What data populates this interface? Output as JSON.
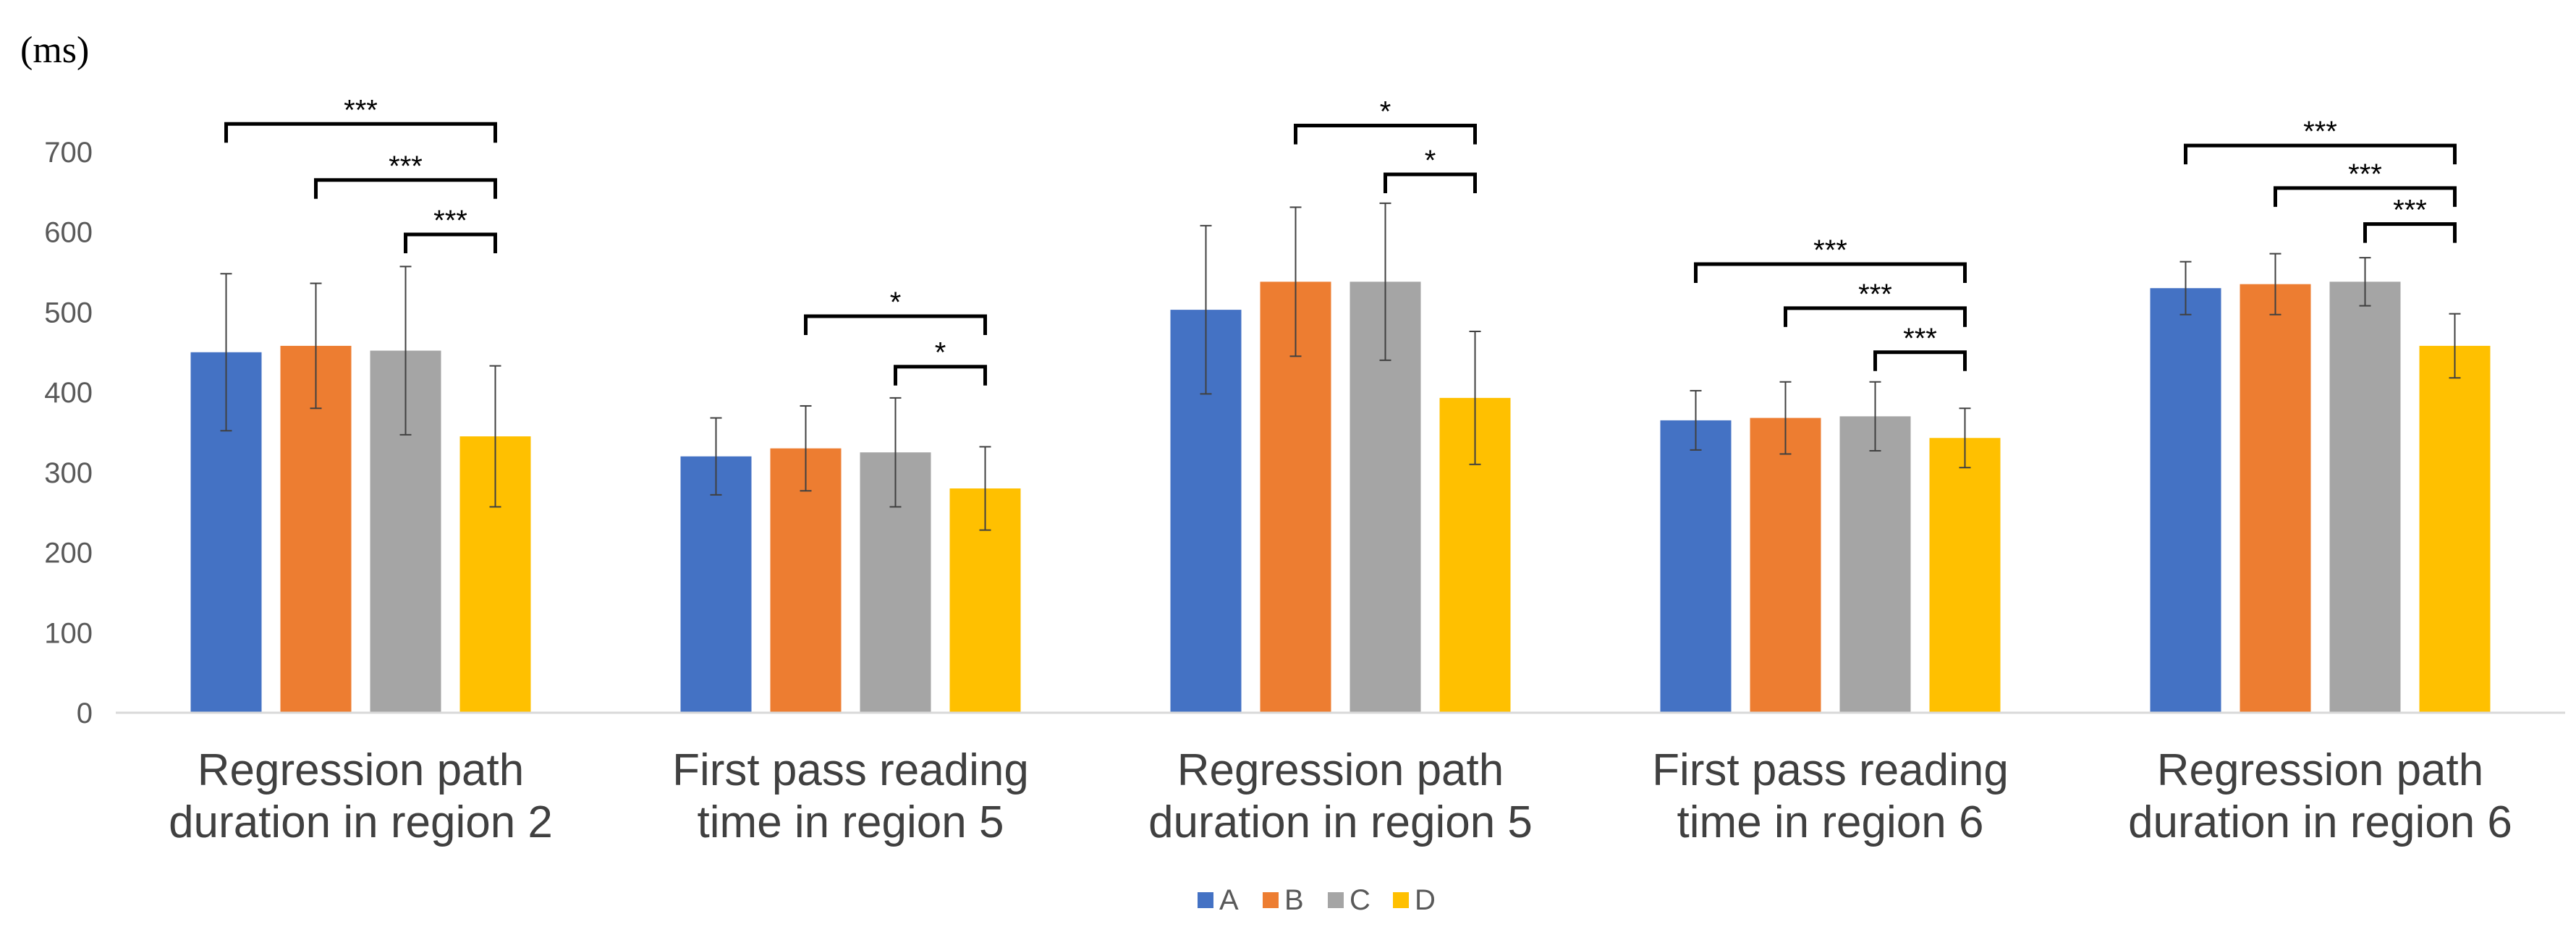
{
  "chart_data": {
    "type": "bar",
    "unit_label": "(ms)",
    "ylim": [
      0,
      700
    ],
    "yticks": [
      "0",
      "100",
      "200",
      "300",
      "400",
      "500",
      "600",
      "700"
    ],
    "categories": [
      [
        "Regression path",
        "duration in region 2"
      ],
      [
        "First pass reading",
        "time in region 5"
      ],
      [
        "Regression path",
        "duration in region 5"
      ],
      [
        "First pass reading",
        "time in region 6"
      ],
      [
        "Regression path",
        "duration in region 6"
      ]
    ],
    "series": [
      {
        "name": "A",
        "color": "#4472C4",
        "values": [
          450,
          320,
          503,
          365,
          530
        ],
        "errors": [
          98,
          48,
          105,
          37,
          33
        ]
      },
      {
        "name": "B",
        "color": "#ED7D31",
        "values": [
          458,
          330,
          538,
          368,
          535
        ],
        "errors": [
          78,
          53,
          93,
          45,
          38
        ]
      },
      {
        "name": "C",
        "color": "#A5A5A5",
        "values": [
          452,
          325,
          538,
          370,
          538
        ],
        "errors": [
          105,
          68,
          98,
          43,
          30
        ]
      },
      {
        "name": "D",
        "color": "#FFC000",
        "values": [
          345,
          280,
          393,
          343,
          458
        ],
        "errors": [
          88,
          52,
          83,
          37,
          40
        ]
      }
    ],
    "significance": [
      {
        "category": 0,
        "from": 0,
        "to": 3,
        "y": 735,
        "label": "***"
      },
      {
        "category": 0,
        "from": 1,
        "to": 3,
        "y": 665,
        "label": "***"
      },
      {
        "category": 0,
        "from": 2,
        "to": 3,
        "y": 597,
        "label": "***"
      },
      {
        "category": 1,
        "from": 1,
        "to": 3,
        "y": 495,
        "label": "*"
      },
      {
        "category": 1,
        "from": 2,
        "to": 3,
        "y": 432,
        "label": "*"
      },
      {
        "category": 2,
        "from": 1,
        "to": 3,
        "y": 733,
        "label": "*"
      },
      {
        "category": 2,
        "from": 2,
        "to": 3,
        "y": 672,
        "label": "*"
      },
      {
        "category": 3,
        "from": 0,
        "to": 3,
        "y": 560,
        "label": "***"
      },
      {
        "category": 3,
        "from": 1,
        "to": 3,
        "y": 505,
        "label": "***"
      },
      {
        "category": 3,
        "from": 2,
        "to": 3,
        "y": 450,
        "label": "***"
      },
      {
        "category": 4,
        "from": 0,
        "to": 3,
        "y": 708,
        "label": "***"
      },
      {
        "category": 4,
        "from": 1,
        "to": 3,
        "y": 655,
        "label": "***"
      },
      {
        "category": 4,
        "from": 2,
        "to": 3,
        "y": 610,
        "label": "***"
      }
    ],
    "legend_position": "bottom"
  }
}
